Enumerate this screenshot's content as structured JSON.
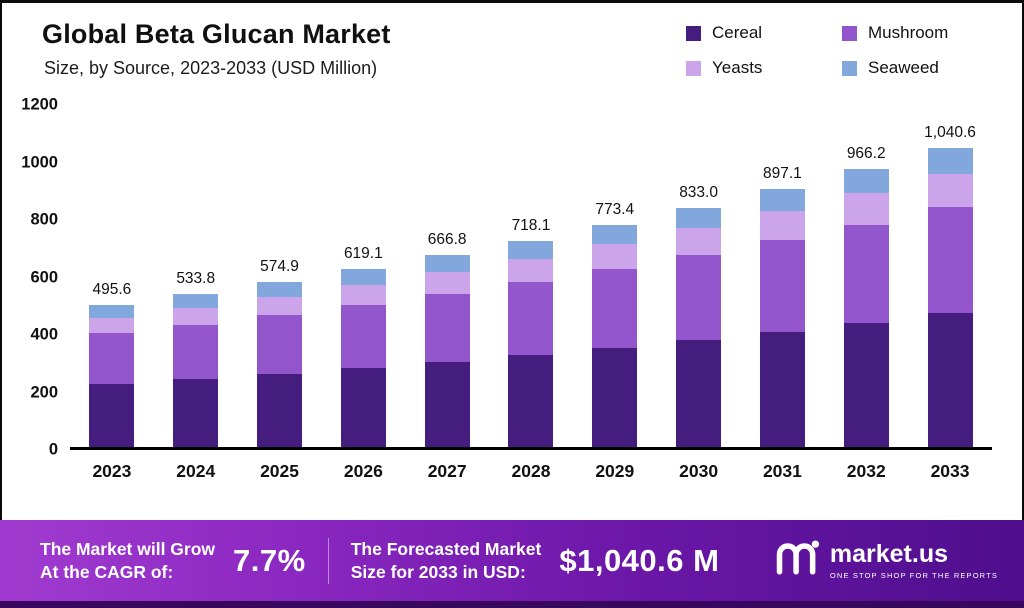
{
  "chart_data": {
    "type": "bar",
    "stacked": true,
    "title": "Global Beta Glucan Market",
    "subtitle": "Size, by Source, 2023-2033 (USD Million)",
    "unit": "USD Million",
    "grid": false,
    "legend_position": "top-right",
    "categories": [
      "2023",
      "2024",
      "2025",
      "2026",
      "2027",
      "2028",
      "2029",
      "2030",
      "2031",
      "2032",
      "2033"
    ],
    "series": [
      {
        "name": "Cereal",
        "color": "#451d7f",
        "values": [
          220,
          237,
          255,
          275,
          297,
          320,
          345,
          372,
          401,
          432,
          466
        ]
      },
      {
        "name": "Mushroom",
        "color": "#9355cc",
        "values": [
          175,
          188,
          203,
          219,
          236,
          254,
          274,
          295,
          318,
          342,
          368
        ]
      },
      {
        "name": "Yeasts",
        "color": "#cba4ea",
        "values": [
          55,
          60,
          65,
          70,
          75,
          81,
          87,
          94,
          101,
          109,
          117
        ]
      },
      {
        "name": "Seaweed",
        "color": "#82a7dc",
        "values": [
          45.6,
          48.8,
          51.9,
          55.1,
          58.8,
          63.1,
          67.4,
          72.0,
          77.1,
          83.2,
          89.6
        ]
      }
    ],
    "totals": [
      495.6,
      533.8,
      574.9,
      619.1,
      666.8,
      718.1,
      773.4,
      833.0,
      897.1,
      966.2,
      1040.6
    ],
    "total_labels": [
      "495.6",
      "533.8",
      "574.9",
      "619.1",
      "666.8",
      "718.1",
      "773.4",
      "833.0",
      "897.1",
      "966.2",
      "1,040.6"
    ],
    "xlabel": "",
    "ylabel": "",
    "ylim": [
      0,
      1200
    ],
    "yticks": [
      0,
      200,
      400,
      600,
      800,
      1000,
      1200
    ]
  },
  "banner": {
    "cagr_label_line1": "The Market will Grow",
    "cagr_label_line2": "At the CAGR of:",
    "cagr_value": "7.7%",
    "forecast_label_line1": "The Forecasted Market",
    "forecast_label_line2": "Size for 2033 in USD:",
    "forecast_value": "$1,040.6 M",
    "brand": "market.us",
    "brand_tagline": "ONE STOP SHOP FOR THE REPORTS"
  },
  "colors": {
    "banner_gradient_start": "#a13bd0",
    "banner_gradient_end": "#4e0e8c",
    "banner_bottom_strip": "#38085e",
    "axis": "#000000",
    "text": "#111111"
  }
}
